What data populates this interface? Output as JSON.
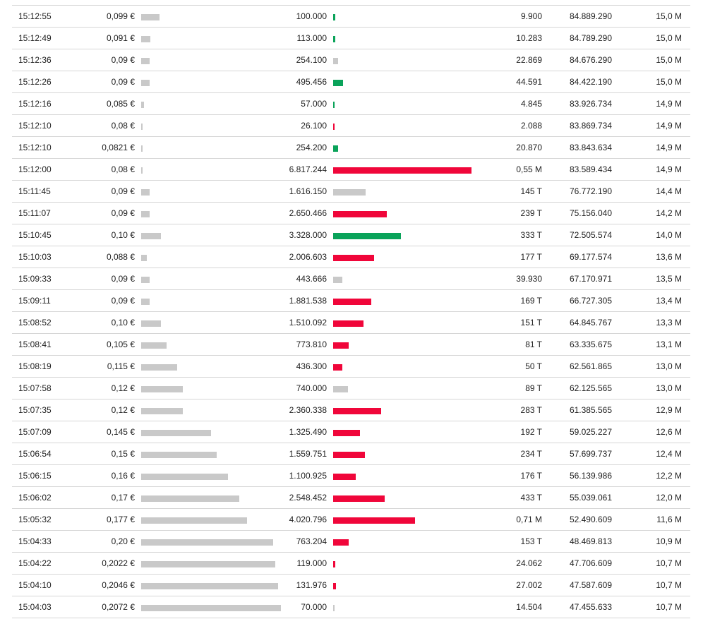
{
  "colors": {
    "buy": "#0aa35a",
    "sell": "#f0063a",
    "neutral": "#c9c9c9",
    "divider": "#d6d6d6"
  },
  "trades": [
    {
      "time": "15:12:55",
      "price": "0,099 €",
      "price_value": 0.099,
      "volume": "100.000",
      "volume_value": 100000,
      "side": "buy",
      "turnover": "9.900",
      "cum_volume": "84.889.290",
      "cum_turnover": "15,0 M"
    },
    {
      "time": "15:12:49",
      "price": "0,091 €",
      "price_value": 0.091,
      "volume": "113.000",
      "volume_value": 113000,
      "side": "buy",
      "turnover": "10.283",
      "cum_volume": "84.789.290",
      "cum_turnover": "15,0 M"
    },
    {
      "time": "15:12:36",
      "price": "0,09 €",
      "price_value": 0.09,
      "volume": "254.100",
      "volume_value": 254100,
      "side": "neutral",
      "turnover": "22.869",
      "cum_volume": "84.676.290",
      "cum_turnover": "15,0 M"
    },
    {
      "time": "15:12:26",
      "price": "0,09 €",
      "price_value": 0.09,
      "volume": "495.456",
      "volume_value": 495456,
      "side": "buy",
      "turnover": "44.591",
      "cum_volume": "84.422.190",
      "cum_turnover": "15,0 M"
    },
    {
      "time": "15:12:16",
      "price": "0,085 €",
      "price_value": 0.085,
      "volume": "57.000",
      "volume_value": 57000,
      "side": "buy",
      "turnover": "4.845",
      "cum_volume": "83.926.734",
      "cum_turnover": "14,9 M"
    },
    {
      "time": "15:12:10",
      "price": "0,08 €",
      "price_value": 0.08,
      "volume": "26.100",
      "volume_value": 26100,
      "side": "sell",
      "turnover": "2.088",
      "cum_volume": "83.869.734",
      "cum_turnover": "14,9 M"
    },
    {
      "time": "15:12:10",
      "price": "0,0821 €",
      "price_value": 0.0821,
      "volume": "254.200",
      "volume_value": 254200,
      "side": "buy",
      "turnover": "20.870",
      "cum_volume": "83.843.634",
      "cum_turnover": "14,9 M"
    },
    {
      "time": "15:12:00",
      "price": "0,08 €",
      "price_value": 0.08,
      "volume": "6.817.244",
      "volume_value": 6817244,
      "side": "sell",
      "turnover": "0,55 M",
      "cum_volume": "83.589.434",
      "cum_turnover": "14,9 M"
    },
    {
      "time": "15:11:45",
      "price": "0,09 €",
      "price_value": 0.09,
      "volume": "1.616.150",
      "volume_value": 1616150,
      "side": "neutral",
      "turnover": "145 T",
      "cum_volume": "76.772.190",
      "cum_turnover": "14,4 M"
    },
    {
      "time": "15:11:07",
      "price": "0,09 €",
      "price_value": 0.09,
      "volume": "2.650.466",
      "volume_value": 2650466,
      "side": "sell",
      "turnover": "239 T",
      "cum_volume": "75.156.040",
      "cum_turnover": "14,2 M"
    },
    {
      "time": "15:10:45",
      "price": "0,10 €",
      "price_value": 0.1,
      "volume": "3.328.000",
      "volume_value": 3328000,
      "side": "buy",
      "turnover": "333 T",
      "cum_volume": "72.505.574",
      "cum_turnover": "14,0 M"
    },
    {
      "time": "15:10:03",
      "price": "0,088 €",
      "price_value": 0.088,
      "volume": "2.006.603",
      "volume_value": 2006603,
      "side": "sell",
      "turnover": "177 T",
      "cum_volume": "69.177.574",
      "cum_turnover": "13,6 M"
    },
    {
      "time": "15:09:33",
      "price": "0,09 €",
      "price_value": 0.09,
      "volume": "443.666",
      "volume_value": 443666,
      "side": "neutral",
      "turnover": "39.930",
      "cum_volume": "67.170.971",
      "cum_turnover": "13,5 M"
    },
    {
      "time": "15:09:11",
      "price": "0,09 €",
      "price_value": 0.09,
      "volume": "1.881.538",
      "volume_value": 1881538,
      "side": "sell",
      "turnover": "169 T",
      "cum_volume": "66.727.305",
      "cum_turnover": "13,4 M"
    },
    {
      "time": "15:08:52",
      "price": "0,10 €",
      "price_value": 0.1,
      "volume": "1.510.092",
      "volume_value": 1510092,
      "side": "sell",
      "turnover": "151 T",
      "cum_volume": "64.845.767",
      "cum_turnover": "13,3 M"
    },
    {
      "time": "15:08:41",
      "price": "0,105 €",
      "price_value": 0.105,
      "volume": "773.810",
      "volume_value": 773810,
      "side": "sell",
      "turnover": "81 T",
      "cum_volume": "63.335.675",
      "cum_turnover": "13,1 M"
    },
    {
      "time": "15:08:19",
      "price": "0,115 €",
      "price_value": 0.115,
      "volume": "436.300",
      "volume_value": 436300,
      "side": "sell",
      "turnover": "50 T",
      "cum_volume": "62.561.865",
      "cum_turnover": "13,0 M"
    },
    {
      "time": "15:07:58",
      "price": "0,12 €",
      "price_value": 0.12,
      "volume": "740.000",
      "volume_value": 740000,
      "side": "neutral",
      "turnover": "89 T",
      "cum_volume": "62.125.565",
      "cum_turnover": "13,0 M"
    },
    {
      "time": "15:07:35",
      "price": "0,12 €",
      "price_value": 0.12,
      "volume": "2.360.338",
      "volume_value": 2360338,
      "side": "sell",
      "turnover": "283 T",
      "cum_volume": "61.385.565",
      "cum_turnover": "12,9 M"
    },
    {
      "time": "15:07:09",
      "price": "0,145 €",
      "price_value": 0.145,
      "volume": "1.325.490",
      "volume_value": 1325490,
      "side": "sell",
      "turnover": "192 T",
      "cum_volume": "59.025.227",
      "cum_turnover": "12,6 M"
    },
    {
      "time": "15:06:54",
      "price": "0,15 €",
      "price_value": 0.15,
      "volume": "1.559.751",
      "volume_value": 1559751,
      "side": "sell",
      "turnover": "234 T",
      "cum_volume": "57.699.737",
      "cum_turnover": "12,4 M"
    },
    {
      "time": "15:06:15",
      "price": "0,16 €",
      "price_value": 0.16,
      "volume": "1.100.925",
      "volume_value": 1100925,
      "side": "sell",
      "turnover": "176 T",
      "cum_volume": "56.139.986",
      "cum_turnover": "12,2 M"
    },
    {
      "time": "15:06:02",
      "price": "0,17 €",
      "price_value": 0.17,
      "volume": "2.548.452",
      "volume_value": 2548452,
      "side": "sell",
      "turnover": "433 T",
      "cum_volume": "55.039.061",
      "cum_turnover": "12,0 M"
    },
    {
      "time": "15:05:32",
      "price": "0,177 €",
      "price_value": 0.177,
      "volume": "4.020.796",
      "volume_value": 4020796,
      "side": "sell",
      "turnover": "0,71 M",
      "cum_volume": "52.490.609",
      "cum_turnover": "11,6 M"
    },
    {
      "time": "15:04:33",
      "price": "0,20 €",
      "price_value": 0.2,
      "volume": "763.204",
      "volume_value": 763204,
      "side": "sell",
      "turnover": "153 T",
      "cum_volume": "48.469.813",
      "cum_turnover": "10,9 M"
    },
    {
      "time": "15:04:22",
      "price": "0,2022 €",
      "price_value": 0.2022,
      "volume": "119.000",
      "volume_value": 119000,
      "side": "sell",
      "turnover": "24.062",
      "cum_volume": "47.706.609",
      "cum_turnover": "10,7 M"
    },
    {
      "time": "15:04:10",
      "price": "0,2046 €",
      "price_value": 0.2046,
      "volume": "131.976",
      "volume_value": 131976,
      "side": "sell",
      "turnover": "27.002",
      "cum_volume": "47.587.609",
      "cum_turnover": "10,7 M"
    },
    {
      "time": "15:04:03",
      "price": "0,2072 €",
      "price_value": 0.2072,
      "volume": "70.000",
      "volume_value": 70000,
      "side": "neutral",
      "turnover": "14.504",
      "cum_volume": "47.455.633",
      "cum_turnover": "10,7 M"
    }
  ]
}
